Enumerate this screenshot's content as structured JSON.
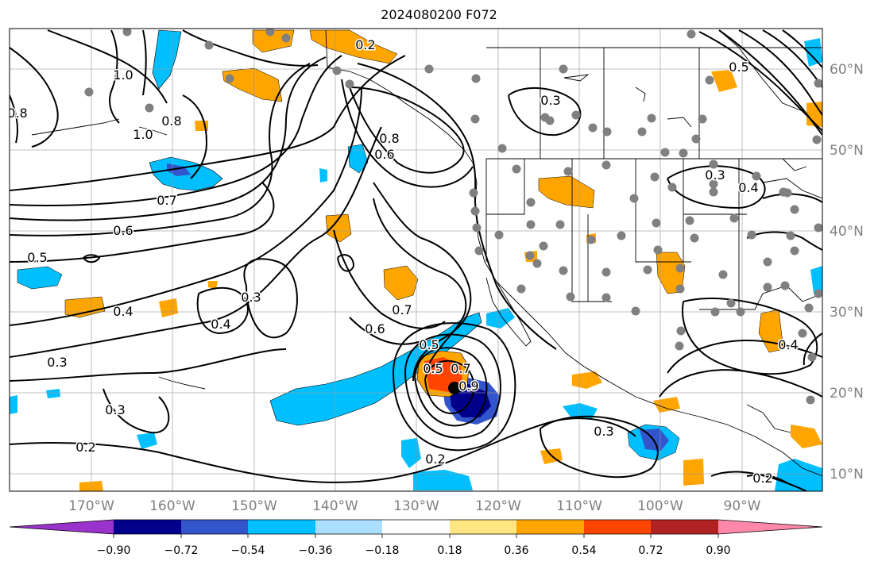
{
  "title": "2024080200 F072",
  "axes": {
    "lon_labels": [
      "170°W",
      "160°W",
      "150°W",
      "140°W",
      "130°W",
      "120°W",
      "110°W",
      "100°W",
      "90°W"
    ],
    "lat_labels": [
      "60°N",
      "50°N",
      "40°N",
      "30°N",
      "20°N",
      "10°N"
    ]
  },
  "contour_labels": [
    "0.2",
    "0.2",
    "0.2",
    "0.2",
    "0.3",
    "0.3",
    "0.3",
    "0.3",
    "0.3",
    "0.3",
    "0.4",
    "0.4",
    "0.4",
    "0.4",
    "0.5",
    "0.5",
    "0.5",
    "0.5",
    "0.6",
    "0.6",
    "0.6",
    "0.7",
    "0.7",
    "0.8",
    "0.8",
    "0.8",
    "1.0",
    "1.0",
    "0.9",
    "0.7"
  ],
  "colorbar": {
    "tick_labels": [
      "−0.90",
      "−0.72",
      "−0.54",
      "−0.36",
      "−0.18",
      "0.18",
      "0.36",
      "0.54",
      "0.72",
      "0.90"
    ],
    "colors": [
      "#9933cc",
      "#00008b",
      "#3355cc",
      "#00bfff",
      "#aadfff",
      "#ffffff",
      "#ffe680",
      "#ffa500",
      "#ff4500",
      "#b22222",
      "#ff88aa"
    ]
  },
  "storm_marker": "storm-center"
}
